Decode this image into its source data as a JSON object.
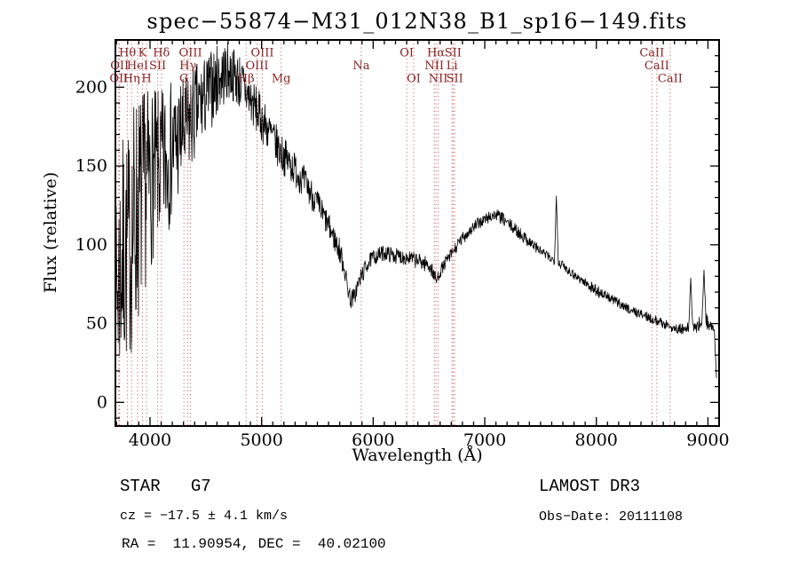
{
  "chart_data": {
    "type": "line",
    "title": "spec−55874−M31_012N38_B1_sp16−149.fits",
    "xlabel": "Wavelength (Å)",
    "ylabel": "Flux (relative)",
    "xlim": [
      3690,
      9100
    ],
    "ylim": [
      -15,
      230
    ],
    "x_major_ticks": [
      4000,
      5000,
      6000,
      7000,
      8000,
      9000
    ],
    "y_major_ticks": [
      0,
      50,
      100,
      150,
      200
    ],
    "x_minor_step": 100,
    "y_minor_step": 10,
    "grid": false,
    "line_color": "#000000",
    "spectral_line_color": "#cc6666",
    "spectral_label_color": "#882222",
    "noise_seed": 7,
    "sample_step": 3.5,
    "spectrum_envelope": [
      [
        3690,
        55,
        60
      ],
      [
        3710,
        75,
        75
      ],
      [
        3740,
        90,
        80
      ],
      [
        3780,
        95,
        75
      ],
      [
        3820,
        100,
        72
      ],
      [
        3860,
        115,
        85
      ],
      [
        3900,
        125,
        75
      ],
      [
        3950,
        135,
        65
      ],
      [
        4000,
        142,
        58
      ],
      [
        4050,
        146,
        52
      ],
      [
        4100,
        150,
        48
      ],
      [
        4150,
        155,
        50
      ],
      [
        4200,
        160,
        44
      ],
      [
        4250,
        166,
        40
      ],
      [
        4300,
        171,
        36
      ],
      [
        4350,
        176,
        33
      ],
      [
        4400,
        183,
        32
      ],
      [
        4450,
        189,
        28
      ],
      [
        4500,
        194,
        26
      ],
      [
        4550,
        199,
        25
      ],
      [
        4600,
        204,
        23
      ],
      [
        4650,
        208,
        21
      ],
      [
        4700,
        210,
        19
      ],
      [
        4750,
        208,
        18
      ],
      [
        4800,
        204,
        18
      ],
      [
        4850,
        198,
        17
      ],
      [
        4900,
        192,
        16
      ],
      [
        4950,
        186,
        15
      ],
      [
        5000,
        180,
        15
      ],
      [
        5050,
        174,
        14
      ],
      [
        5100,
        168,
        13
      ],
      [
        5150,
        161,
        13
      ],
      [
        5200,
        156,
        12
      ],
      [
        5250,
        152,
        12
      ],
      [
        5300,
        148,
        11
      ],
      [
        5350,
        143,
        11
      ],
      [
        5400,
        138,
        10
      ],
      [
        5450,
        132,
        10
      ],
      [
        5500,
        126,
        9
      ],
      [
        5550,
        119,
        9
      ],
      [
        5600,
        112,
        8
      ],
      [
        5650,
        104,
        8
      ],
      [
        5700,
        96,
        8
      ],
      [
        5740,
        86,
        7
      ],
      [
        5770,
        73,
        6
      ],
      [
        5800,
        65,
        6
      ],
      [
        5830,
        67,
        6
      ],
      [
        5860,
        74,
        6
      ],
      [
        5900,
        81,
        6
      ],
      [
        5950,
        88,
        5
      ],
      [
        6000,
        92,
        5
      ],
      [
        6100,
        95,
        5
      ],
      [
        6200,
        93,
        5
      ],
      [
        6300,
        92,
        5
      ],
      [
        6400,
        90,
        5
      ],
      [
        6500,
        87,
        5
      ],
      [
        6540,
        82,
        5
      ],
      [
        6565,
        77,
        4
      ],
      [
        6600,
        83,
        4
      ],
      [
        6650,
        89,
        4
      ],
      [
        6700,
        94,
        4
      ],
      [
        6750,
        99,
        4
      ],
      [
        6800,
        104,
        4
      ],
      [
        6850,
        108,
        4
      ],
      [
        6900,
        111,
        4
      ],
      [
        6950,
        114,
        4
      ],
      [
        7000,
        116,
        4
      ],
      [
        7050,
        118,
        4
      ],
      [
        7100,
        119,
        4
      ],
      [
        7150,
        117,
        4
      ],
      [
        7200,
        114,
        4
      ],
      [
        7300,
        108,
        4
      ],
      [
        7400,
        102,
        4
      ],
      [
        7500,
        96,
        3
      ],
      [
        7600,
        91,
        3
      ],
      [
        7700,
        87,
        3
      ],
      [
        7800,
        81,
        3
      ],
      [
        7900,
        76,
        3
      ],
      [
        8000,
        71,
        4
      ],
      [
        8100,
        67,
        3
      ],
      [
        8200,
        63,
        3
      ],
      [
        8300,
        59,
        3
      ],
      [
        8400,
        56,
        3
      ],
      [
        8500,
        53,
        3
      ],
      [
        8600,
        50,
        3
      ],
      [
        8700,
        47,
        3
      ],
      [
        8800,
        46,
        4
      ],
      [
        8850,
        48,
        4
      ],
      [
        8900,
        47,
        4
      ],
      [
        8950,
        53,
        5
      ],
      [
        9000,
        51,
        5
      ],
      [
        9040,
        47,
        4
      ],
      [
        9060,
        42,
        3
      ],
      [
        9078,
        14,
        2
      ]
    ],
    "spectrum_spikes": [
      [
        7642,
        131
      ],
      [
        8846,
        79
      ],
      [
        8963,
        84
      ]
    ],
    "spectral_lines": [
      {
        "label": "Hθ",
        "wavelength": 3798,
        "row": 1
      },
      {
        "label": "K",
        "wavelength": 3933,
        "row": 1
      },
      {
        "label": "Hδ",
        "wavelength": 4102,
        "row": 1
      },
      {
        "label": "OIII",
        "wavelength": 4363,
        "row": 1
      },
      {
        "label": "OIII",
        "wavelength": 5007,
        "row": 1
      },
      {
        "label": "OI",
        "wavelength": 6300,
        "row": 1
      },
      {
        "label": "Hα",
        "wavelength": 6563,
        "row": 1
      },
      {
        "label": "SII",
        "wavelength": 6716,
        "row": 1
      },
      {
        "label": "CaII",
        "wavelength": 8498,
        "row": 1
      },
      {
        "label": "OII",
        "wavelength": 3727,
        "row": 2
      },
      {
        "label": "HeI",
        "wavelength": 3889,
        "row": 2
      },
      {
        "label": "SII",
        "wavelength": 4069,
        "row": 2
      },
      {
        "label": "Hγ",
        "wavelength": 4340,
        "row": 2
      },
      {
        "label": "OIII",
        "wavelength": 4959,
        "row": 2
      },
      {
        "label": "Na",
        "wavelength": 5893,
        "row": 2
      },
      {
        "label": "NII",
        "wavelength": 6548,
        "row": 2
      },
      {
        "label": "Li",
        "wavelength": 6707,
        "row": 2
      },
      {
        "label": "CaII",
        "wavelength": 8542,
        "row": 2
      },
      {
        "label": "OII",
        "wavelength": 3720,
        "row": 3
      },
      {
        "label": "Hη",
        "wavelength": 3835,
        "row": 3
      },
      {
        "label": "H",
        "wavelength": 3969,
        "row": 3
      },
      {
        "label": "G",
        "wavelength": 4304,
        "row": 3
      },
      {
        "label": "Hβ",
        "wavelength": 4861,
        "row": 3
      },
      {
        "label": "Mg",
        "wavelength": 5175,
        "row": 3
      },
      {
        "label": "OI",
        "wavelength": 6363,
        "row": 3
      },
      {
        "label": "NII",
        "wavelength": 6583,
        "row": 3
      },
      {
        "label": "SII",
        "wavelength": 6731,
        "row": 3
      },
      {
        "label": "CaII",
        "wavelength": 8662,
        "row": 3
      }
    ]
  },
  "annotations": {
    "class_line": "STAR   G7",
    "survey": "LAMOST DR3",
    "cz_line": "cz = −17.5 ± 4.1 km/s",
    "obs_date": "Obs−Date: 20111108",
    "radec_line": "RA =  11.90954, DEC =  40.02100"
  }
}
